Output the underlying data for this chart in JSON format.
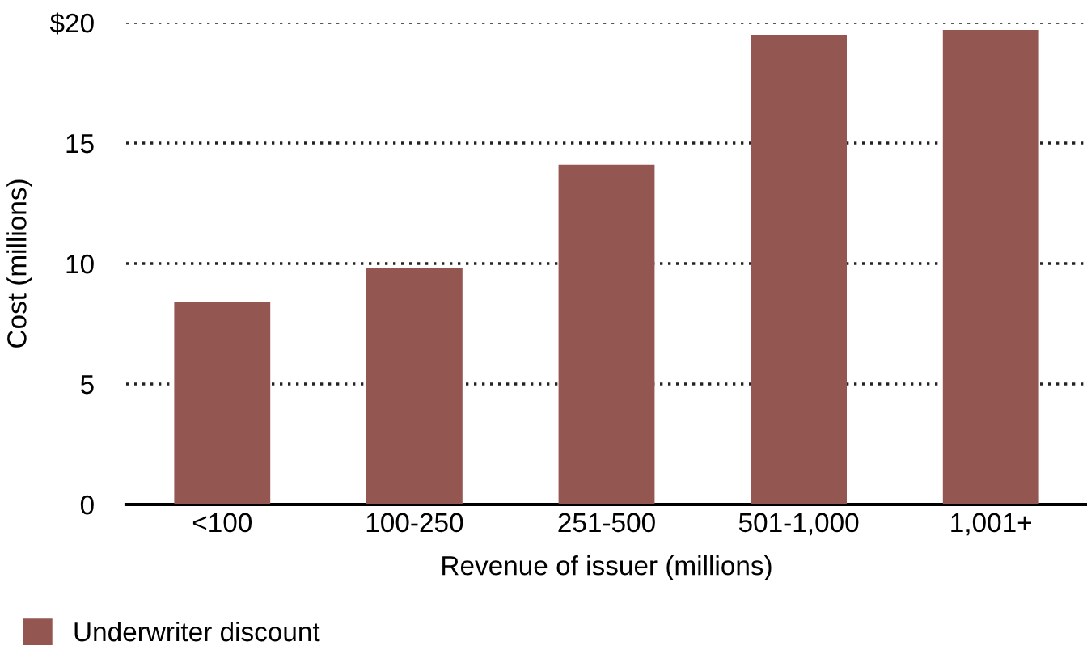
{
  "chart_data": {
    "type": "bar",
    "xlabel": "Revenue of issuer (millions)",
    "ylabel": "Cost (millions)",
    "categories": [
      "<100",
      "100-250",
      "251-500",
      "501-1,000",
      "1,001+"
    ],
    "series": [
      {
        "name": "Underwriter discount",
        "color": "#945650",
        "values": [
          8.4,
          9.8,
          14.1,
          19.5,
          19.7
        ]
      }
    ],
    "ylim": [
      0,
      20
    ],
    "yticks": [
      0,
      5,
      10,
      15,
      {
        "value": 20,
        "label": "$20"
      }
    ],
    "grid": "y",
    "legend": "bottom left"
  }
}
